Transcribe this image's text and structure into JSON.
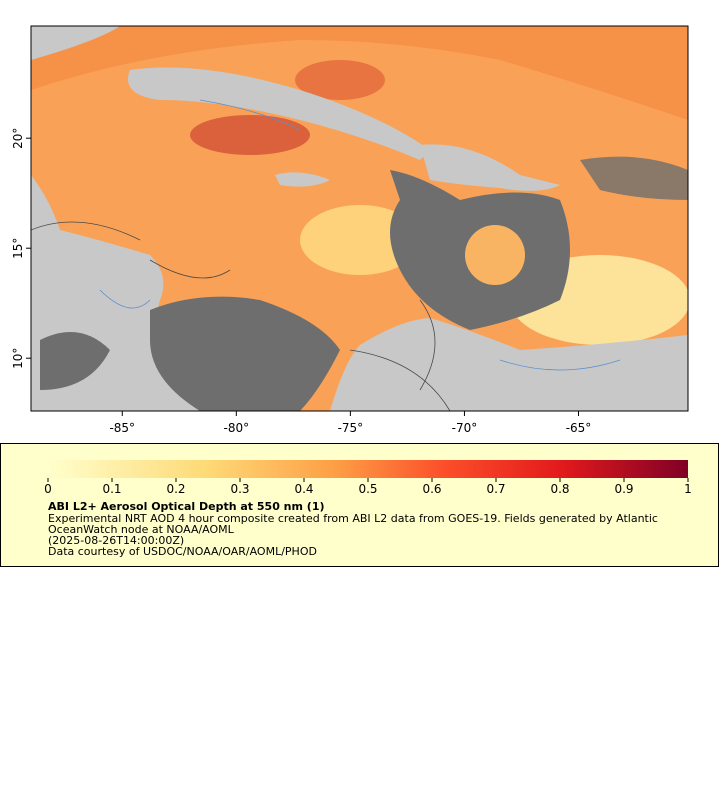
{
  "map": {
    "xlim": [
      -89,
      -60.2
    ],
    "ylim": [
      7.6,
      25.1
    ],
    "xticks": [
      {
        "value": -85,
        "label": "-85°"
      },
      {
        "value": -80,
        "label": "-80°"
      },
      {
        "value": -75,
        "label": "-75°"
      },
      {
        "value": -70,
        "label": "-70°"
      },
      {
        "value": -65,
        "label": "-65°"
      }
    ],
    "yticks": [
      {
        "value": 10,
        "label": "10°"
      },
      {
        "value": 15,
        "label": "15°"
      },
      {
        "value": 20,
        "label": "20°"
      }
    ]
  },
  "colorbar": {
    "lim": [
      0,
      1
    ],
    "ticks": [
      0,
      0.1,
      0.2,
      0.3,
      0.4,
      0.5,
      0.6,
      0.7,
      0.8,
      0.9,
      1
    ],
    "title": "ABI L2+ Aerosol Optical Depth at 550 nm (1)",
    "lines": [
      "Experimental NRT AOD 4 hour composite created from ABI L2 data from GOES-19. Fields generated by Atlantic",
      "OceanWatch node at NOAA/AOML",
      "(2025-08-26T14:00:00Z)",
      "Data courtesy of USDOC/NOAA/OAR/AOML/PHOD"
    ]
  }
}
